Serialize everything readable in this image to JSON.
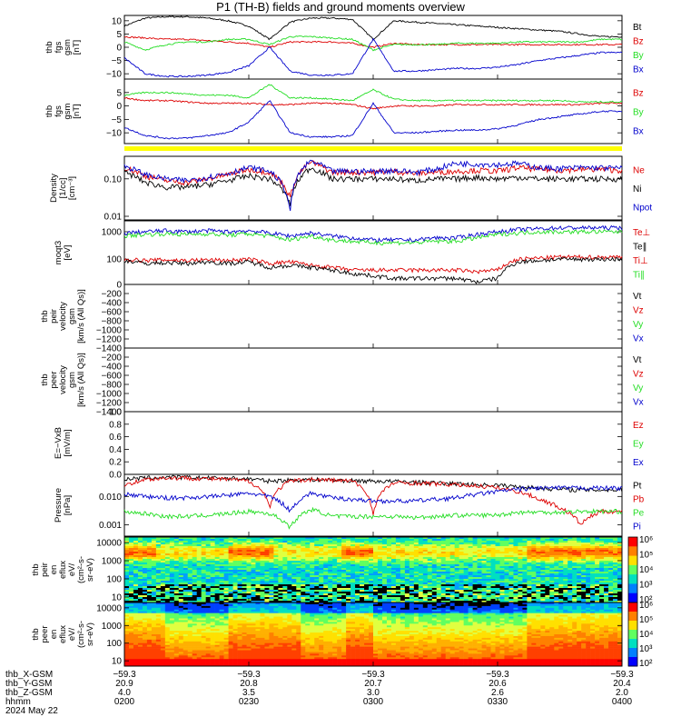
{
  "title": "P1 (TH-B) fields and ground moments overview",
  "colors": {
    "black": "#000000",
    "red": "#dd0000",
    "green": "#22dd22",
    "blue": "#0000cc",
    "yellow": "#ffff00"
  },
  "chart_data": [
    {
      "type": "line",
      "ylabel": [
        "thb",
        "fgs",
        "gsm",
        "[nT]"
      ],
      "ylim": [
        -12,
        12
      ],
      "yticks": [
        "10",
        "5",
        "0",
        "−5",
        "−10"
      ],
      "ytickvals": [
        10,
        5,
        0,
        -5,
        -10
      ],
      "legend": [
        {
          "name": "Bt",
          "color": "#000000"
        },
        {
          "name": "Bz",
          "color": "#dd0000"
        },
        {
          "name": "By",
          "color": "#22dd22"
        },
        {
          "name": "Bx",
          "color": "#0000cc"
        }
      ],
      "x": [
        0,
        5,
        10,
        15,
        20,
        25,
        30,
        35,
        40,
        45,
        50,
        55,
        60,
        65,
        70,
        75,
        80,
        85,
        90,
        95,
        100,
        105,
        110,
        115,
        120
      ],
      "series": [
        {
          "name": "Bt",
          "color": "#000000",
          "values": [
            8,
            11,
            11.5,
            11.5,
            11,
            10,
            8,
            3,
            9.5,
            11,
            11,
            10.5,
            3,
            10,
            9.5,
            9,
            8.5,
            8,
            7.5,
            7,
            6.5,
            6,
            5,
            4,
            4
          ]
        },
        {
          "name": "Bz",
          "color": "#dd0000",
          "values": [
            4,
            3.5,
            3,
            3,
            2.5,
            2,
            1.5,
            0,
            2,
            2,
            2,
            1.5,
            0,
            1.5,
            1,
            1,
            1,
            1,
            1,
            1,
            1,
            1,
            1,
            1,
            1
          ]
        },
        {
          "name": "By",
          "color": "#22dd22",
          "values": [
            2,
            -1,
            1,
            2,
            2,
            3,
            3,
            1,
            4,
            4,
            3.5,
            3,
            -1,
            1,
            1,
            1,
            1.5,
            1.5,
            1.5,
            2,
            2,
            2,
            2,
            3,
            3
          ]
        },
        {
          "name": "Bx",
          "color": "#0000cc",
          "values": [
            -4,
            -10,
            -11,
            -11,
            -10.5,
            -9.5,
            -7,
            0,
            -9,
            -10.5,
            -10.5,
            -10,
            3,
            -9,
            -9,
            -8.5,
            -8,
            -8,
            -7.5,
            -6.5,
            -5,
            -4,
            -3,
            -2,
            -2
          ]
        }
      ]
    },
    {
      "type": "line",
      "ylabel": [
        "thb",
        "fgs",
        "gsm",
        "[nT]"
      ],
      "ylim": [
        -14,
        10
      ],
      "yticks": [
        "5",
        "0",
        "−5",
        "−10"
      ],
      "ytickvals": [
        5,
        0,
        -5,
        -10
      ],
      "legend": [
        {
          "name": "Bz",
          "color": "#dd0000"
        },
        {
          "name": "By",
          "color": "#22dd22"
        },
        {
          "name": "Bx",
          "color": "#0000cc"
        }
      ],
      "x": [
        0,
        5,
        10,
        15,
        20,
        25,
        30,
        35,
        40,
        45,
        50,
        55,
        60,
        65,
        70,
        75,
        80,
        85,
        90,
        95,
        100,
        105,
        110,
        115,
        120
      ],
      "series": [
        {
          "name": "Bz",
          "color": "#dd0000",
          "values": [
            3,
            2,
            2,
            1.5,
            1,
            1,
            1,
            0.5,
            0.5,
            1,
            1,
            0.5,
            -1,
            0,
            0,
            0,
            0.5,
            0.5,
            0.5,
            0.5,
            0.5,
            0.5,
            0.5,
            1,
            1
          ]
        },
        {
          "name": "By",
          "color": "#22dd22",
          "values": [
            4,
            5,
            5,
            4.5,
            4,
            4,
            3,
            8,
            3,
            3,
            2.5,
            2,
            6,
            2.5,
            2,
            2,
            2,
            2,
            2,
            2,
            2,
            2,
            1.5,
            1.5,
            1.5
          ]
        },
        {
          "name": "Bx",
          "color": "#0000cc",
          "values": [
            -8,
            -11,
            -12,
            -12,
            -11,
            -10,
            -6,
            2,
            -10,
            -11.5,
            -11.5,
            -11,
            1,
            -10,
            -10,
            -9.5,
            -9,
            -9,
            -8.5,
            -7,
            -5,
            -4,
            -3,
            -2,
            -2
          ]
        }
      ]
    },
    {
      "type": "line",
      "yscale": "log",
      "ylabel": [
        "Density",
        "[1/cc]",
        "[cm⁻³]"
      ],
      "ylim": [
        0.008,
        0.4
      ],
      "yticks": [
        "0.10",
        "0.01"
      ],
      "ytickvals": [
        0.1,
        0.01
      ],
      "legend": [
        {
          "name": "Ne",
          "color": "#dd0000"
        },
        {
          "name": "Ni",
          "color": "#000000"
        },
        {
          "name": "Npot",
          "color": "#0000cc"
        }
      ],
      "x": [
        0,
        5,
        10,
        15,
        20,
        25,
        30,
        35,
        40,
        45,
        50,
        55,
        60,
        65,
        70,
        75,
        80,
        85,
        90,
        95,
        100,
        105,
        110,
        115,
        120
      ],
      "series": [
        {
          "name": "Ne",
          "color": "#dd0000",
          "values": [
            0.2,
            0.12,
            0.09,
            0.08,
            0.1,
            0.13,
            0.18,
            0.15,
            0.03,
            0.28,
            0.15,
            0.15,
            0.15,
            0.16,
            0.14,
            0.15,
            0.16,
            0.17,
            0.16,
            0.2,
            0.18,
            0.17,
            0.18,
            0.18,
            0.17
          ]
        },
        {
          "name": "Ni",
          "color": "#000000",
          "values": [
            0.15,
            0.08,
            0.06,
            0.06,
            0.07,
            0.09,
            0.12,
            0.1,
            0.02,
            0.2,
            0.1,
            0.1,
            0.1,
            0.1,
            0.09,
            0.1,
            0.1,
            0.11,
            0.1,
            0.11,
            0.1,
            0.1,
            0.1,
            0.1,
            0.1
          ]
        },
        {
          "name": "Npot",
          "color": "#0000cc",
          "values": [
            0.22,
            0.13,
            0.1,
            0.09,
            0.11,
            0.14,
            0.2,
            0.16,
            0.012,
            0.3,
            0.16,
            0.16,
            0.16,
            0.17,
            0.15,
            0.18,
            0.26,
            0.25,
            0.24,
            0.26,
            0.2,
            0.19,
            0.2,
            0.2,
            0.19
          ]
        }
      ]
    },
    {
      "type": "line",
      "yscale": "log",
      "ylabel": [
        "moqt3",
        "[eV]"
      ],
      "ylim": [
        12,
        2500
      ],
      "yticks": [
        "1000",
        "100"
      ],
      "ytickvals": [
        1000,
        100
      ],
      "legend": [
        {
          "name": "Te⊥",
          "color": "#dd0000"
        },
        {
          "name": "Te∥",
          "color": "#000000"
        },
        {
          "name": "Ti⊥",
          "color": "#dd0000"
        },
        {
          "name": "Ti∥",
          "color": "#22dd22"
        }
      ],
      "x": [
        0,
        5,
        10,
        15,
        20,
        25,
        30,
        35,
        40,
        45,
        50,
        55,
        60,
        65,
        70,
        75,
        80,
        85,
        90,
        95,
        100,
        105,
        110,
        115,
        120
      ],
      "series": [
        {
          "name": "Ti blue",
          "color": "#0000cc",
          "values": [
            900,
            1000,
            1100,
            1000,
            1100,
            1000,
            1100,
            900,
            700,
            900,
            700,
            600,
            500,
            500,
            500,
            600,
            600,
            800,
            1000,
            1200,
            1300,
            1400,
            1400,
            1400,
            1400
          ]
        },
        {
          "name": "Ti∥",
          "color": "#22dd22",
          "values": [
            700,
            800,
            850,
            800,
            850,
            750,
            850,
            700,
            500,
            700,
            500,
            450,
            400,
            400,
            400,
            450,
            450,
            600,
            800,
            900,
            1000,
            1000,
            1000,
            1000,
            1000
          ]
        },
        {
          "name": "Te⊥",
          "color": "#dd0000",
          "values": [
            100,
            90,
            95,
            90,
            95,
            90,
            100,
            70,
            80,
            60,
            50,
            40,
            40,
            40,
            40,
            40,
            40,
            35,
            40,
            100,
            110,
            120,
            120,
            120,
            120
          ]
        },
        {
          "name": "Te∥",
          "color": "#000000",
          "values": [
            90,
            70,
            75,
            70,
            80,
            70,
            80,
            50,
            60,
            50,
            40,
            30,
            25,
            20,
            20,
            20,
            20,
            15,
            20,
            80,
            90,
            100,
            100,
            100,
            100
          ]
        }
      ]
    },
    {
      "type": "line",
      "ylabel": [
        "thb",
        "peir",
        "velocity",
        "gsm",
        "[km/s (All Qs)]"
      ],
      "ylim": [
        -1400,
        0
      ],
      "yticks": [
        "0",
        "−200",
        "−400",
        "−600",
        "−800",
        "−1000",
        "−1200",
        "−1400"
      ],
      "ytickvals": [
        0,
        -200,
        -400,
        -600,
        -800,
        -1000,
        -1200,
        -1400
      ],
      "legend": [
        {
          "name": "Vt",
          "color": "#000000"
        },
        {
          "name": "Vz",
          "color": "#dd0000"
        },
        {
          "name": "Vy",
          "color": "#22dd22"
        },
        {
          "name": "Vx",
          "color": "#0000cc"
        }
      ],
      "series": []
    },
    {
      "type": "line",
      "ylabel": [
        "thb",
        "peer",
        "velocity",
        "gsm",
        "[km/s (All Qs)]"
      ],
      "ylim": [
        -1400,
        0
      ],
      "yticks": [
        "−200",
        "−400",
        "−600",
        "−800",
        "−1000",
        "−1200",
        "−1400"
      ],
      "ytickvals": [
        -200,
        -400,
        -600,
        -800,
        -1000,
        -1200,
        -1400
      ],
      "legend": [
        {
          "name": "Vt",
          "color": "#000000"
        },
        {
          "name": "Vz",
          "color": "#dd0000"
        },
        {
          "name": "Vy",
          "color": "#22dd22"
        },
        {
          "name": "Vx",
          "color": "#0000cc"
        }
      ],
      "series": []
    },
    {
      "type": "line",
      "ylabel": [
        "E=−VxB",
        "[mV/m]"
      ],
      "ylim": [
        0,
        1
      ],
      "yticks": [
        "1.0",
        "0.8",
        "0.6",
        "0.4",
        "0.2",
        "0.0"
      ],
      "ytickvals": [
        1,
        0.8,
        0.6,
        0.4,
        0.2,
        0
      ],
      "legend": [
        {
          "name": "Ez",
          "color": "#dd0000"
        },
        {
          "name": "Ey",
          "color": "#22dd22"
        },
        {
          "name": "Ex",
          "color": "#0000cc"
        }
      ],
      "series": []
    },
    {
      "type": "line",
      "yscale": "log",
      "ylabel": [
        "Pressure",
        "[nPa]"
      ],
      "ylim": [
        0.0004,
        0.06
      ],
      "yticks": [
        "0.010",
        "0.001"
      ],
      "ytickvals": [
        0.01,
        0.001
      ],
      "legend": [
        {
          "name": "Pt",
          "color": "#000000"
        },
        {
          "name": "Pb",
          "color": "#dd0000"
        },
        {
          "name": "Pe",
          "color": "#22dd22"
        },
        {
          "name": "Pi",
          "color": "#0000cc"
        }
      ],
      "x": [
        0,
        5,
        10,
        15,
        20,
        25,
        30,
        35,
        40,
        45,
        50,
        55,
        60,
        65,
        70,
        75,
        80,
        85,
        90,
        95,
        100,
        105,
        110,
        115,
        120
      ],
      "series": [
        {
          "name": "Pt",
          "color": "#000000",
          "values": [
            0.04,
            0.045,
            0.048,
            0.047,
            0.045,
            0.044,
            0.042,
            0.035,
            0.038,
            0.04,
            0.038,
            0.036,
            0.035,
            0.034,
            0.032,
            0.03,
            0.028,
            0.026,
            0.025,
            0.022,
            0.02,
            0.018,
            0.017,
            0.017,
            0.017
          ]
        },
        {
          "name": "Pb",
          "color": "#dd0000",
          "values": [
            0.025,
            0.04,
            0.045,
            0.045,
            0.042,
            0.04,
            0.035,
            0.004,
            0.035,
            0.04,
            0.038,
            0.035,
            0.002,
            0.03,
            0.03,
            0.028,
            0.026,
            0.024,
            0.02,
            0.015,
            0.008,
            0.004,
            0.001,
            0.003,
            0.003
          ]
        },
        {
          "name": "Pe",
          "color": "#22dd22",
          "values": [
            0.003,
            0.0025,
            0.002,
            0.002,
            0.0022,
            0.0025,
            0.003,
            0.0025,
            0.0008,
            0.0035,
            0.002,
            0.002,
            0.002,
            0.002,
            0.0018,
            0.002,
            0.0022,
            0.0022,
            0.0022,
            0.0028,
            0.0028,
            0.0028,
            0.003,
            0.003,
            0.003
          ]
        },
        {
          "name": "Pi",
          "color": "#0000cc",
          "values": [
            0.012,
            0.01,
            0.009,
            0.009,
            0.01,
            0.011,
            0.013,
            0.01,
            0.003,
            0.013,
            0.009,
            0.008,
            0.007,
            0.007,
            0.007,
            0.008,
            0.009,
            0.012,
            0.015,
            0.018,
            0.02,
            0.02,
            0.02,
            0.02,
            0.02
          ]
        }
      ]
    },
    {
      "type": "heatmap",
      "ylabel": [
        "thb",
        "peir",
        "en",
        "eflux",
        "eV/",
        "(cm²-s-",
        "sr-eV)"
      ],
      "yscale": "log",
      "ylim": [
        5,
        20000
      ],
      "yticks": [
        "10000",
        "1000",
        "100",
        "10"
      ],
      "ytickvals": [
        10000,
        1000,
        100,
        10
      ],
      "colorbar": {
        "label": "[eV/(cm²-s-sr-eV)] (All Qs)",
        "ticks": [
          "10⁶",
          "10⁵",
          "10⁴",
          "10³",
          "10²"
        ]
      }
    },
    {
      "type": "heatmap",
      "ylabel": [
        "thb",
        "peer",
        "en",
        "eflux",
        "eV/",
        "(cm²-s-",
        "sr-eV)"
      ],
      "yscale": "log",
      "ylim": [
        5,
        20000
      ],
      "yticks": [
        "10000",
        "1000",
        "100",
        "10"
      ],
      "ytickvals": [
        10000,
        1000,
        100,
        10
      ],
      "colorbar": {
        "label": "[eV/(cm²-s-sr-eV)] (All Qs)",
        "ticks": [
          "10⁶",
          "10⁵",
          "10⁴",
          "10³",
          "10²"
        ]
      }
    }
  ],
  "xaxis": {
    "rows": [
      {
        "label": "thb_X-GSM",
        "values": [
          "−59.3",
          "−59.3",
          "−59.3",
          "−59.3",
          "−59.3"
        ]
      },
      {
        "label": "thb_Y-GSM",
        "values": [
          "20.9",
          "20.8",
          "20.7",
          "20.6",
          "20.4"
        ]
      },
      {
        "label": "thb_Z-GSM",
        "values": [
          "4.0",
          "3.5",
          "3.0",
          "2.6",
          "2.0"
        ]
      },
      {
        "label": "hhmm",
        "values": [
          "0200",
          "0230",
          "0300",
          "0330",
          "0400"
        ]
      }
    ],
    "date": "2024 May 22"
  }
}
